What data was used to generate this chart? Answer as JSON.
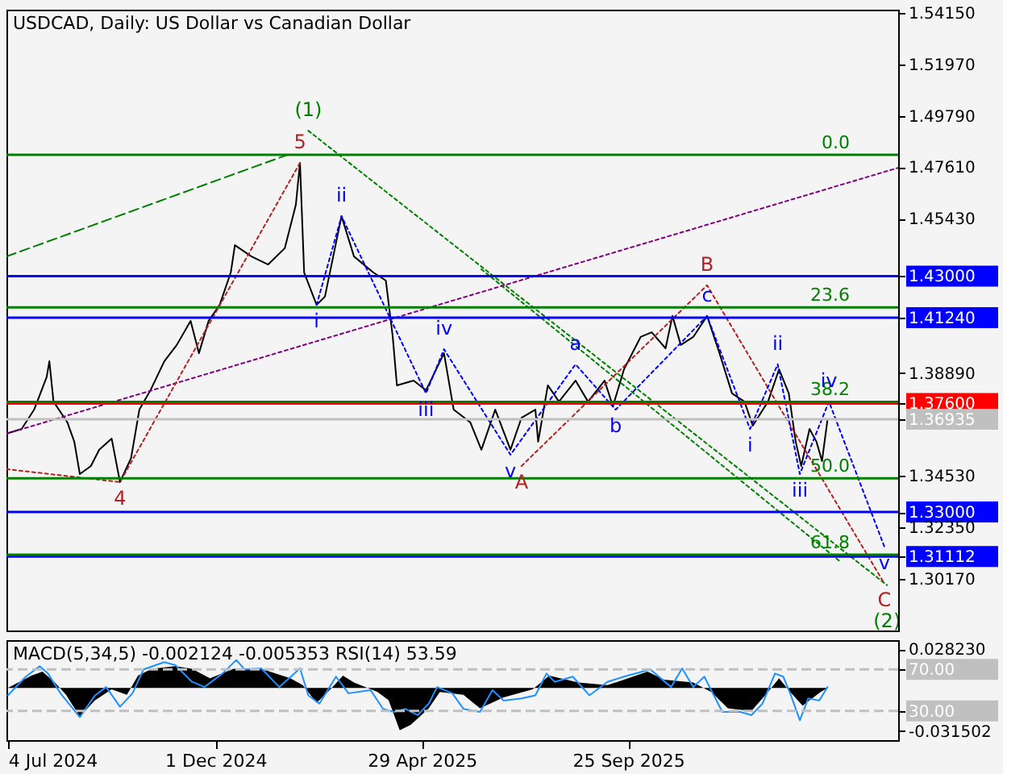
{
  "chart_data": [
    {
      "type": "line",
      "title": "USDCAD, Daily:  US Dollar vs Canadian Dollar",
      "xlim": [
        "2024-07-03",
        "2026-04-08"
      ],
      "ylim": [
        1.2798,
        1.5429
      ],
      "tick_labels": "y",
      "yticks": [
        {
          "value": 1.5415,
          "label": "1.54150"
        },
        {
          "value": 1.5197,
          "label": "1.51970"
        },
        {
          "value": 1.4979,
          "label": "1.49790"
        },
        {
          "value": 1.4761,
          "label": "1.47610"
        },
        {
          "value": 1.4543,
          "label": "1.45430"
        },
        {
          "value": 1.43,
          "label": "1.43000"
        },
        {
          "value": 1.4124,
          "label": "1.41240"
        },
        {
          "value": 1.3889,
          "label": "1.38890"
        },
        {
          "value": 1.376,
          "label": "1.37600"
        },
        {
          "value": 1.36935,
          "label": "1.36935"
        },
        {
          "value": 1.3453,
          "label": "1.34530"
        },
        {
          "value": 1.33,
          "label": "1.33000"
        },
        {
          "value": 1.3235,
          "label": "1.32350"
        },
        {
          "value": 1.31112,
          "label": "1.31112"
        },
        {
          "value": 1.3017,
          "label": "1.30170"
        }
      ],
      "series": [
        {
          "color": "#000000",
          "x": [
            "2024-07-03",
            "2024-07-14",
            "2024-07-23",
            "2024-08-01",
            "2024-08-03",
            "2024-08-06",
            "2024-08-16",
            "2024-08-21",
            "2024-08-25",
            "2024-09-02",
            "2024-09-08",
            "2024-09-17",
            "2024-09-23",
            "2024-10-01",
            "2024-10-07",
            "2024-10-15",
            "2024-10-25",
            "2024-11-03",
            "2024-11-13",
            "2024-11-19",
            "2024-11-26",
            "2024-12-04",
            "2024-12-12",
            "2024-12-15",
            "2024-12-27",
            "2025-01-08",
            "2025-01-20",
            "2025-01-28",
            "2025-01-31",
            "2025-02-03",
            "2025-02-12",
            "2025-02-18",
            "2025-03-02",
            "2025-03-11",
            "2025-03-25",
            "2025-04-03",
            "2025-04-08",
            "2025-04-11",
            "2025-04-23",
            "2025-05-02",
            "2025-05-15",
            "2025-05-22",
            "2025-06-03",
            "2025-06-11",
            "2025-06-21",
            "2025-06-29",
            "2025-07-02",
            "2025-07-10",
            "2025-07-20",
            "2025-07-22",
            "2025-07-29",
            "2025-08-06",
            "2025-08-18",
            "2025-08-27",
            "2025-09-08",
            "2025-09-14",
            "2025-09-22",
            "2025-10-04",
            "2025-10-12",
            "2025-10-22",
            "2025-10-27",
            "2025-11-02",
            "2025-11-11",
            "2025-11-21",
            "2025-11-30",
            "2025-12-09",
            "2025-12-18",
            "2025-12-24",
            "2026-01-04",
            "2026-01-12",
            "2026-01-19",
            "2026-01-24",
            "2026-01-28",
            "2026-02-03",
            "2026-02-08",
            "2026-02-12",
            "2026-02-16"
          ],
          "values": [
            1.3632,
            1.3652,
            1.3734,
            1.3871,
            1.3939,
            1.3768,
            1.368,
            1.3598,
            1.3461,
            1.3495,
            1.3564,
            1.3611,
            1.3427,
            1.3529,
            1.3734,
            1.3816,
            1.3939,
            1.4008,
            1.411,
            1.3973,
            1.411,
            1.4178,
            1.4315,
            1.4431,
            1.4383,
            1.4349,
            1.4418,
            1.4602,
            1.478,
            1.4315,
            1.4178,
            1.4213,
            1.4554,
            1.4383,
            1.4315,
            1.4281,
            1.4042,
            1.3837,
            1.3857,
            1.3816,
            1.3973,
            1.3734,
            1.368,
            1.3564,
            1.3734,
            1.3611,
            1.3564,
            1.37,
            1.3734,
            1.3598,
            1.3837,
            1.3768,
            1.3857,
            1.3768,
            1.3857,
            1.3748,
            1.3905,
            1.4042,
            1.4062,
            1.3994,
            1.4131,
            1.4008,
            1.4042,
            1.4131,
            1.3973,
            1.3803,
            1.3768,
            1.3666,
            1.3768,
            1.3905,
            1.3803,
            1.3598,
            1.3495,
            1.3652,
            1.3598,
            1.3516,
            1.3693
          ]
        },
        {
          "type": "line",
          "color": "#008000",
          "line_style": "dashed",
          "x": [
            "2024-07-03",
            "2025-01-22"
          ],
          "values": [
            1.4383,
            1.4814
          ]
        },
        {
          "type": "line",
          "color": "#008000",
          "line_style": "dotted",
          "x": [
            "2025-02-06",
            "2026-03-31"
          ],
          "values": [
            1.4916,
            1.299
          ]
        },
        {
          "type": "line",
          "color": "#008000",
          "line_style": "dotted",
          "x": [
            "2025-06-11",
            "2026-02-26"
          ],
          "values": [
            1.4329,
            1.3086
          ]
        },
        {
          "type": "line",
          "color": "#800080",
          "line_style": "dotted",
          "x": [
            "2024-07-03",
            "2026-04-08"
          ],
          "values": [
            1.3632,
            1.4759
          ]
        },
        {
          "type": "line",
          "color": "#b22222",
          "line_style": "dotted",
          "x": [
            "2024-07-03",
            "2024-09-23",
            "2025-01-31"
          ],
          "values": [
            1.3482,
            1.3427,
            1.478
          ]
        },
        {
          "type": "line",
          "color": "#b22222",
          "line_style": "dotted",
          "x": [
            "2025-07-10",
            "2025-11-21",
            "2026-03-29"
          ],
          "values": [
            1.3495,
            1.4261,
            1.2997
          ]
        },
        {
          "type": "line",
          "color": "#0000ff",
          "line_style": "dotted",
          "x": [
            "2025-02-12",
            "2025-03-02",
            "2025-05-02",
            "2025-05-15",
            "2025-07-02",
            "2025-08-18",
            "2025-09-16",
            "2025-11-21",
            "2025-12-22",
            "2026-01-11",
            "2026-01-27",
            "2026-02-17",
            "2026-03-29"
          ],
          "values": [
            1.4178,
            1.4554,
            1.3803,
            1.399,
            1.3543,
            1.3926,
            1.3734,
            1.4131,
            1.3652,
            1.3926,
            1.3461,
            1.3768,
            1.3154
          ]
        }
      ],
      "ref_lines": [
        {
          "axis": "y",
          "value": 1.43,
          "color": "#0000ff"
        },
        {
          "axis": "y",
          "value": 1.4124,
          "color": "#0000ff"
        },
        {
          "axis": "y",
          "value": 1.33,
          "color": "#0000ff"
        },
        {
          "axis": "y",
          "value": 1.31112,
          "color": "#0000ff"
        },
        {
          "axis": "y",
          "value": 1.376,
          "color": "#ff0000"
        },
        {
          "axis": "y",
          "value": 1.36935,
          "color": "#c0c0c0"
        },
        {
          "axis": "y",
          "value": 1.4814,
          "color": "#008000"
        },
        {
          "axis": "y",
          "value": 1.4167,
          "color": "#008000"
        },
        {
          "axis": "y",
          "value": 1.3767,
          "color": "#008000"
        },
        {
          "axis": "y",
          "value": 1.3443,
          "color": "#008000"
        },
        {
          "axis": "y",
          "value": 1.3119,
          "color": "#008000"
        }
      ],
      "annotations": [
        {
          "text": "0.0",
          "y": 1.4814
        },
        {
          "text": "23.6",
          "y": 1.4167
        },
        {
          "text": "38.2",
          "y": 1.3767
        },
        {
          "text": "50.0",
          "y": 1.3443
        },
        {
          "text": "61.8",
          "y": 1.3119
        },
        {
          "text": "(1)",
          "x": "2025-02-06",
          "y": 1.4916
        },
        {
          "text": "5",
          "x": "2025-01-31",
          "y": 1.478
        },
        {
          "text": "4",
          "x": "2024-09-23",
          "y": 1.3427
        },
        {
          "text": "i",
          "x": "2025-02-12",
          "y": 1.4178
        },
        {
          "text": "ii",
          "x": "2025-03-02",
          "y": 1.4554
        },
        {
          "text": "iii",
          "x": "2025-05-02",
          "y": 1.3803
        },
        {
          "text": "iv",
          "x": "2025-05-15",
          "y": 1.399
        },
        {
          "text": "v",
          "x": "2025-07-02",
          "y": 1.3543
        },
        {
          "text": "A",
          "x": "2025-07-10",
          "y": 1.3495
        },
        {
          "text": "a",
          "x": "2025-08-18",
          "y": 1.3926
        },
        {
          "text": "b",
          "x": "2025-09-16",
          "y": 1.3734
        },
        {
          "text": "B",
          "x": "2025-11-21",
          "y": 1.4261
        },
        {
          "text": "c",
          "x": "2025-11-21",
          "y": 1.4131
        },
        {
          "text": "i",
          "x": "2025-12-22",
          "y": 1.3652
        },
        {
          "text": "ii",
          "x": "2026-01-11",
          "y": 1.3926
        },
        {
          "text": "iii",
          "x": "2026-01-27",
          "y": 1.3461
        },
        {
          "text": "iv",
          "x": "2026-02-17",
          "y": 1.3768
        },
        {
          "text": "v",
          "x": "2026-03-29",
          "y": 1.3154
        },
        {
          "text": "C",
          "x": "2026-03-29",
          "y": 1.2997
        },
        {
          "text": "(2)",
          "x": "2026-03-31",
          "y": 1.299
        }
      ]
    },
    {
      "type": "area",
      "title": "MACD(5,34,5) -0.002124 -0.005353 RSI(14) 53.59",
      "xlim": [
        "2024-07-03",
        "2026-04-08"
      ],
      "xticks": [
        {
          "value": "2024-07-04",
          "label": "4 Jul 2024"
        },
        {
          "value": "2024-12-01",
          "label": "1 Dec 2024"
        },
        {
          "value": "2025-04-29",
          "label": "29 Apr 2025"
        },
        {
          "value": "2025-09-25",
          "label": "25 Sep 2025"
        }
      ],
      "ylim": [
        -0.0383,
        0.035
      ],
      "yticks": [
        {
          "value": 0.02823,
          "label": "0.028230"
        },
        {
          "value": -0.031502,
          "label": "-0.031502"
        }
      ],
      "y2lim": [
        1.9,
        98.1
      ],
      "y2ticks": [
        {
          "value": 70,
          "label": "70.00"
        },
        {
          "value": 30,
          "label": "30.00"
        }
      ],
      "series": [
        {
          "type": "area",
          "color": "#000000",
          "x": [
            "2024-07-04",
            "2024-07-21",
            "2024-07-29",
            "2024-08-07",
            "2024-08-15",
            "2024-08-25",
            "2024-09-05",
            "2024-09-17",
            "2024-09-28",
            "2024-10-06",
            "2024-10-16",
            "2024-11-02",
            "2024-11-14",
            "2024-11-27",
            "2024-12-14",
            "2025-01-03",
            "2025-01-24",
            "2025-02-02",
            "2025-02-12",
            "2025-02-22",
            "2025-03-03",
            "2025-03-11",
            "2025-03-28",
            "2025-04-05",
            "2025-04-13",
            "2025-04-21",
            "2025-05-04",
            "2025-05-12",
            "2025-05-29",
            "2025-06-10",
            "2025-06-27",
            "2025-07-18",
            "2025-07-30",
            "2025-08-20",
            "2025-09-10",
            "2025-09-22",
            "2025-10-09",
            "2025-10-21",
            "2025-11-11",
            "2025-11-24",
            "2025-12-06",
            "2025-12-23",
            "2026-01-04",
            "2026-01-12",
            "2026-01-20",
            "2026-01-29",
            "2026-02-11",
            "2026-02-16"
          ],
          "values": [
            0.0,
            0.009,
            0.012,
            0.004,
            -0.005,
            -0.021,
            -0.009,
            -0.001,
            -0.005,
            0.009,
            0.014,
            0.016,
            0.014,
            0.007,
            0.014,
            0.014,
            0.007,
            0.002,
            -0.011,
            -0.001,
            0.009,
            0.004,
            -0.003,
            -0.009,
            -0.031,
            -0.027,
            -0.015,
            -0.003,
            -0.005,
            -0.015,
            -0.007,
            -0.001,
            0.009,
            0.004,
            0.002,
            0.006,
            0.012,
            0.006,
            0.004,
            -0.003,
            -0.015,
            -0.017,
            -0.003,
            0.007,
            -0.003,
            -0.013,
            -0.003,
            0.0
          ]
        },
        {
          "type": "line",
          "axis": "y2",
          "color": "#1e90ff",
          "x": [
            "2024-07-04",
            "2024-07-17",
            "2024-07-27",
            "2024-08-02",
            "2024-08-11",
            "2024-08-25",
            "2024-09-05",
            "2024-09-13",
            "2024-09-23",
            "2024-10-02",
            "2024-10-10",
            "2024-10-25",
            "2024-11-02",
            "2024-11-14",
            "2024-11-23",
            "2024-12-06",
            "2024-12-16",
            "2024-12-22",
            "2025-01-03",
            "2025-01-16",
            "2025-01-31",
            "2025-02-06",
            "2025-02-14",
            "2025-02-26",
            "2025-03-07",
            "2025-03-23",
            "2025-04-01",
            "2025-04-09",
            "2025-04-17",
            "2025-04-26",
            "2025-05-04",
            "2025-05-10",
            "2025-05-21",
            "2025-05-29",
            "2025-06-10",
            "2025-06-19",
            "2025-06-27",
            "2025-07-10",
            "2025-07-20",
            "2025-07-28",
            "2025-08-03",
            "2025-08-16",
            "2025-08-28",
            "2025-09-10",
            "2025-09-22",
            "2025-10-11",
            "2025-10-26",
            "2025-11-03",
            "2025-11-11",
            "2025-11-19",
            "2025-12-02",
            "2025-12-15",
            "2025-12-23",
            "2025-12-31",
            "2026-01-09",
            "2026-01-15",
            "2026-01-20",
            "2026-01-27",
            "2026-02-02",
            "2026-02-10",
            "2026-02-16"
          ],
          "values": [
            45,
            63,
            73,
            66,
            47,
            24,
            45,
            53,
            34,
            47,
            70,
            77,
            74,
            58,
            53,
            66,
            79,
            70,
            71,
            53,
            71,
            45,
            37,
            63,
            47,
            50,
            32,
            29,
            32,
            26,
            37,
            53,
            47,
            32,
            29,
            50,
            40,
            42,
            45,
            66,
            58,
            63,
            45,
            58,
            63,
            70,
            53,
            71,
            53,
            63,
            29,
            29,
            26,
            37,
            66,
            63,
            47,
            21,
            42,
            40,
            53
          ]
        }
      ],
      "ref_lines": [
        {
          "axis": "y2",
          "value": 70,
          "color": "#c0c0c0",
          "line_style": "dashed"
        },
        {
          "axis": "y2",
          "value": 30,
          "color": "#c0c0c0",
          "line_style": "dashed"
        }
      ]
    }
  ]
}
